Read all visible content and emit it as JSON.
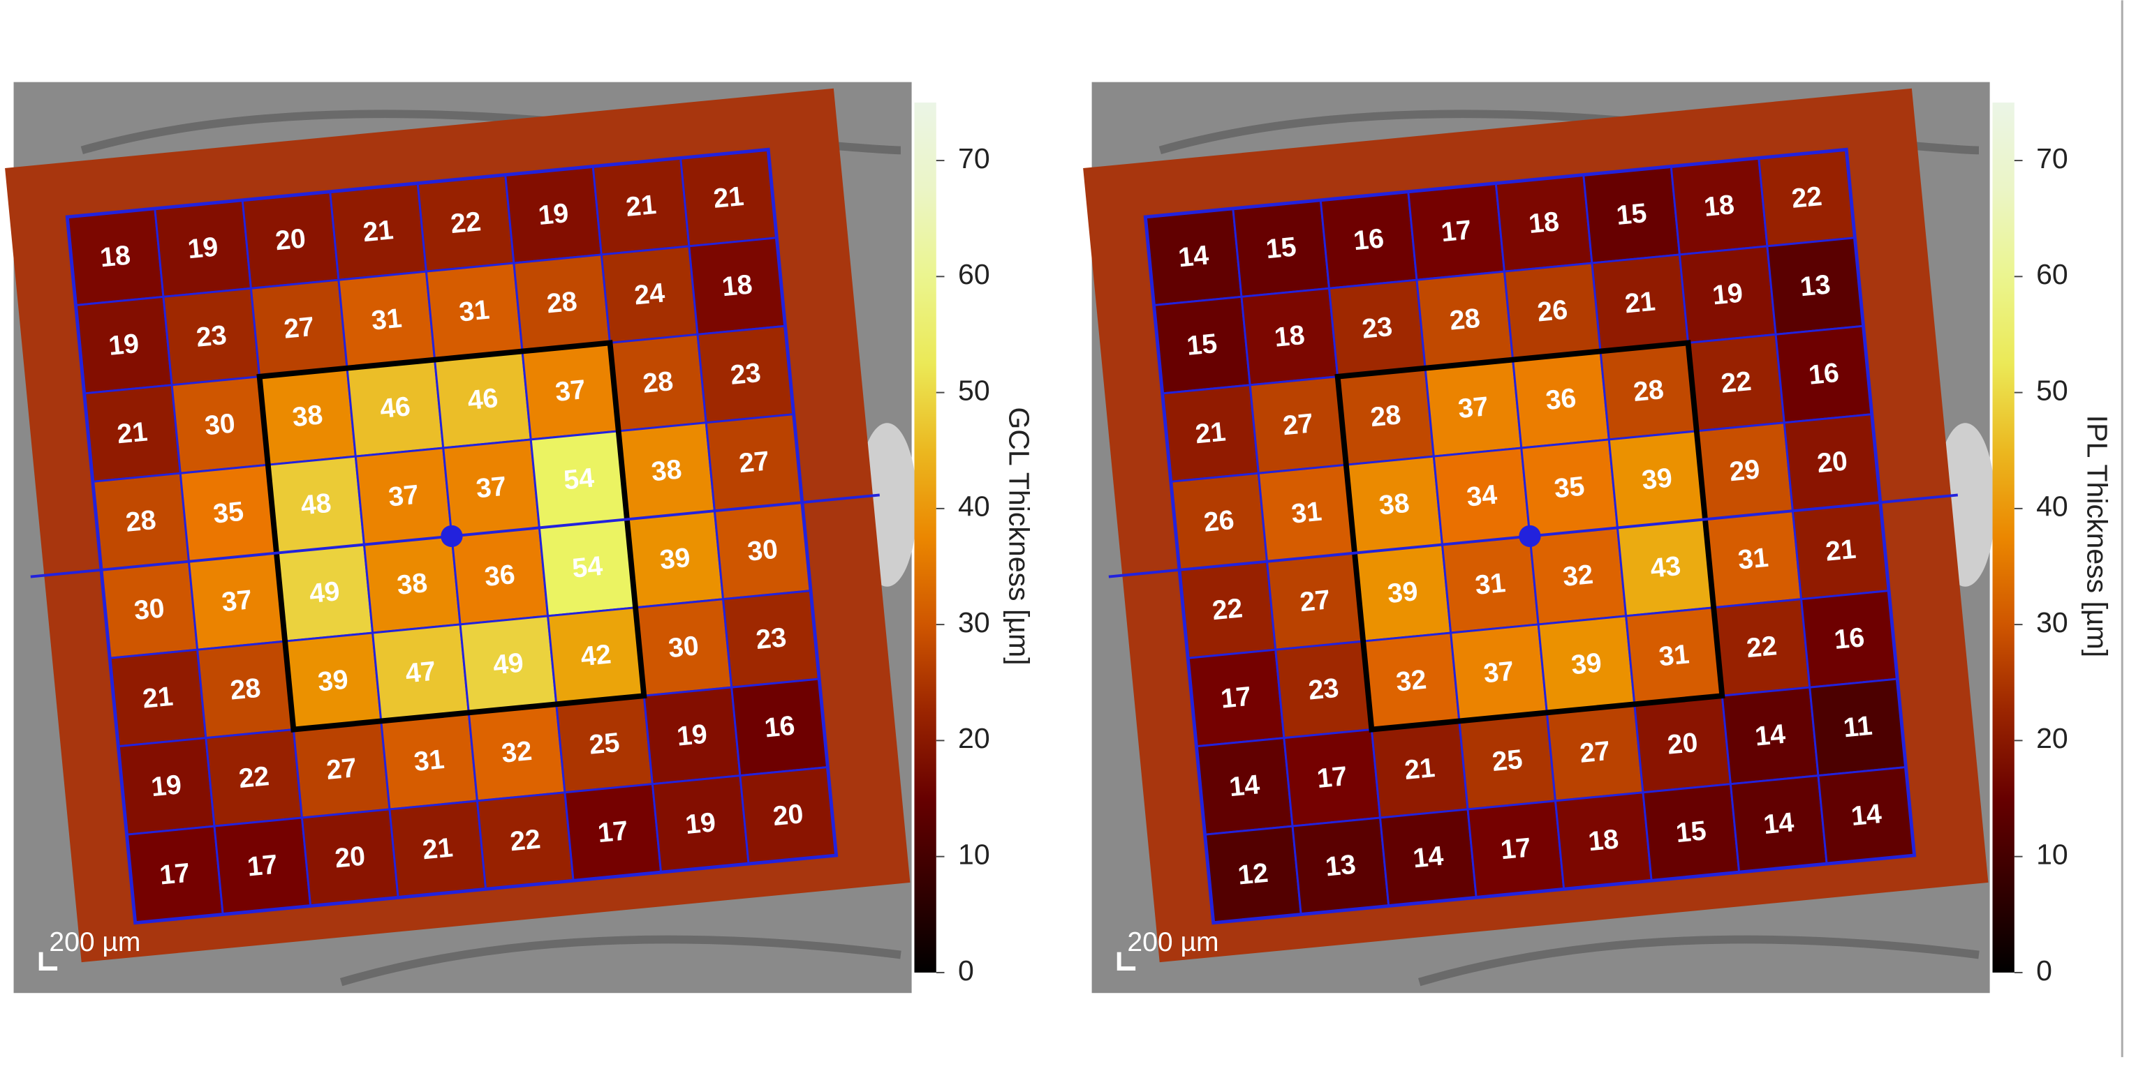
{
  "chart_data": [
    {
      "type": "heatmap",
      "colorbar_label": "GCL  Thickness [µm]",
      "clim": [
        0,
        75
      ],
      "cticks": [
        0,
        10,
        20,
        30,
        40,
        50,
        60,
        70
      ],
      "scale_bar": "200 µm",
      "rows": [
        [
          18,
          19,
          20,
          21,
          22,
          19,
          21,
          21
        ],
        [
          19,
          23,
          27,
          31,
          31,
          28,
          24,
          18
        ],
        [
          21,
          30,
          38,
          46,
          46,
          37,
          28,
          23
        ],
        [
          28,
          35,
          48,
          37,
          37,
          54,
          38,
          27
        ],
        [
          30,
          37,
          49,
          38,
          36,
          54,
          39,
          30
        ],
        [
          21,
          28,
          39,
          47,
          49,
          42,
          30,
          23
        ],
        [
          19,
          22,
          27,
          31,
          32,
          25,
          19,
          16
        ],
        [
          17,
          17,
          20,
          21,
          22,
          17,
          19,
          20
        ]
      ]
    },
    {
      "type": "heatmap",
      "colorbar_label": "IPL  Thickness [µm]",
      "clim": [
        0,
        75
      ],
      "cticks": [
        0,
        10,
        20,
        30,
        40,
        50,
        60,
        70
      ],
      "scale_bar": "200 µm",
      "rows": [
        [
          14,
          15,
          16,
          17,
          18,
          15,
          18,
          22
        ],
        [
          15,
          18,
          23,
          28,
          26,
          21,
          19,
          13
        ],
        [
          21,
          27,
          28,
          37,
          36,
          28,
          22,
          16
        ],
        [
          26,
          31,
          38,
          34,
          35,
          39,
          29,
          20
        ],
        [
          22,
          27,
          39,
          31,
          32,
          43,
          31,
          21
        ],
        [
          17,
          23,
          32,
          37,
          39,
          31,
          22,
          16
        ],
        [
          14,
          17,
          21,
          25,
          27,
          20,
          14,
          11
        ],
        [
          12,
          13,
          14,
          17,
          18,
          15,
          14,
          14
        ]
      ]
    }
  ]
}
